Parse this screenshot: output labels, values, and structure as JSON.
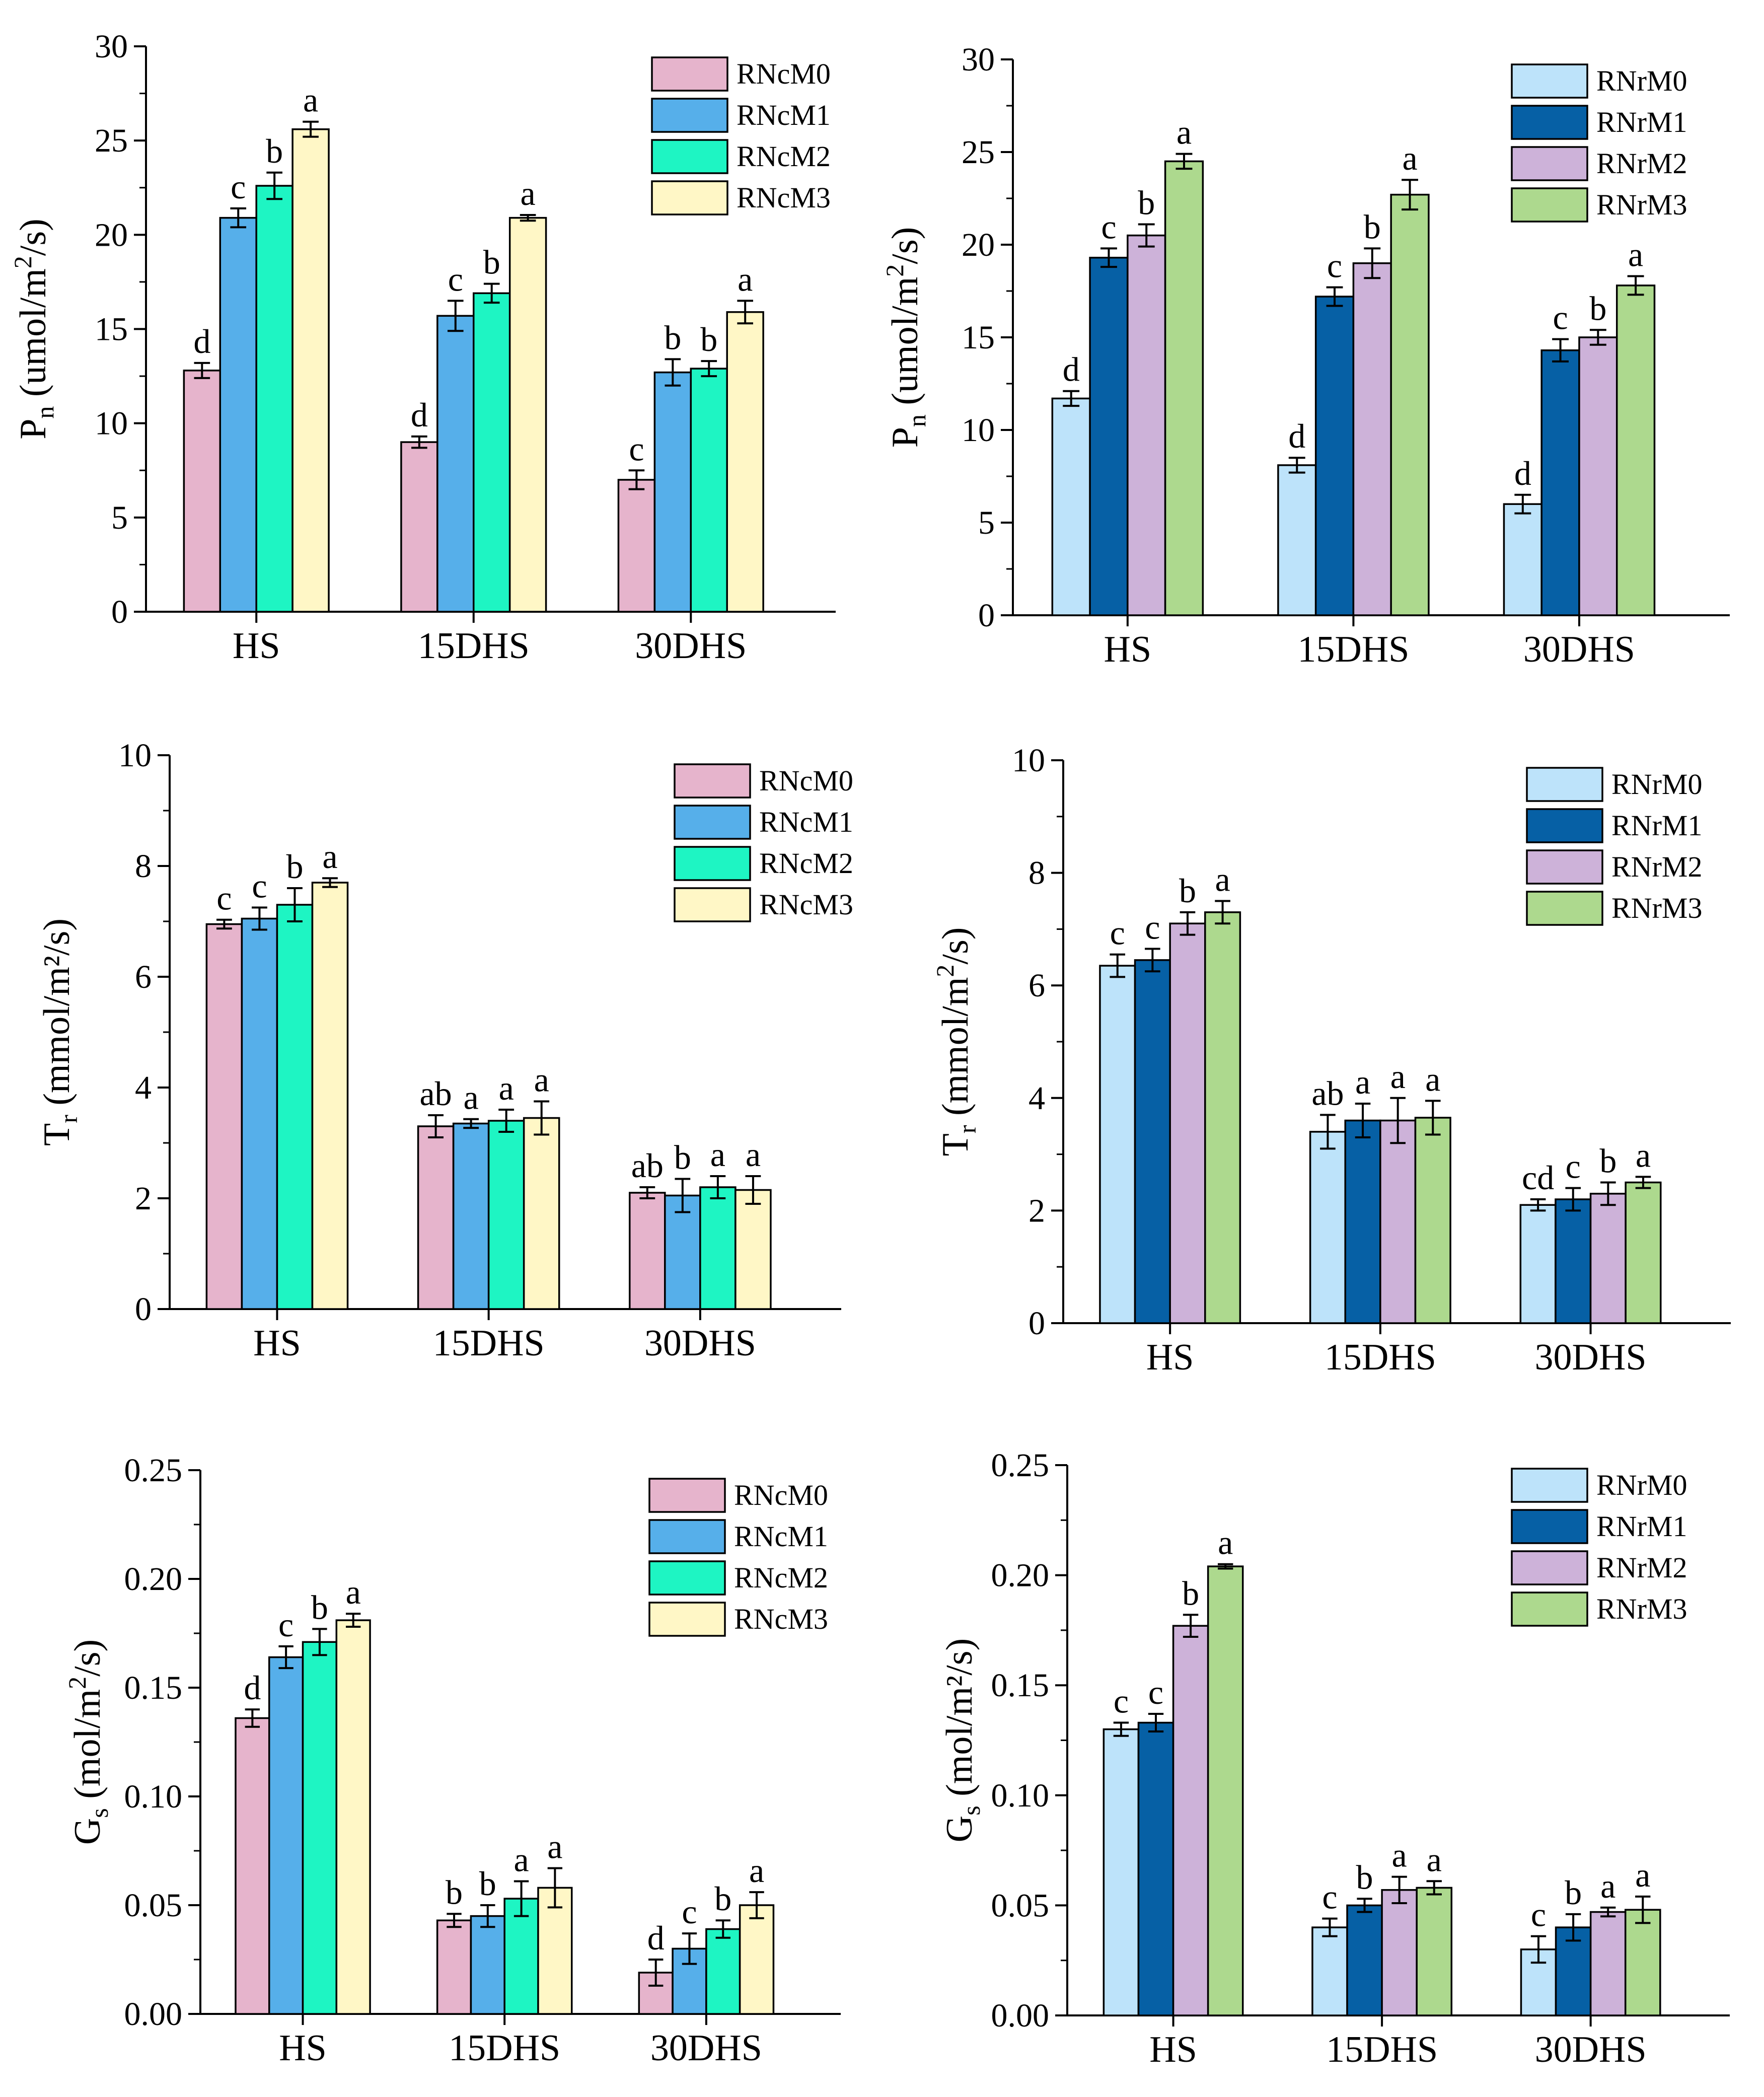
{
  "figure": {
    "title": ""
  },
  "chart_data": [
    {
      "id": "pn-rnc",
      "type": "bar",
      "title": "",
      "ylabel": {
        "main": "P",
        "sub": "n",
        "units": " (umol/m",
        "sup": "2",
        "tail": "/s)"
      },
      "ylim": [
        0,
        30
      ],
      "yticks": [
        "0",
        "5",
        "10",
        "15",
        "20",
        "25",
        "30"
      ],
      "categories": [
        "HS",
        "15DHS",
        "30DHS"
      ],
      "series": [
        {
          "name": "RNcM0",
          "color": "#E6B4CC",
          "values": [
            12.8,
            9.0,
            7.0
          ],
          "errors": [
            0.4,
            0.3,
            0.5
          ],
          "letters": [
            "d",
            "d",
            "c"
          ]
        },
        {
          "name": "RNcM1",
          "color": "#56AFEA",
          "values": [
            20.9,
            15.7,
            12.7
          ],
          "errors": [
            0.5,
            0.8,
            0.7
          ],
          "letters": [
            "c",
            "c",
            "b"
          ]
        },
        {
          "name": "RNcM2",
          "color": "#1EF5C3",
          "values": [
            22.6,
            16.9,
            12.9
          ],
          "errors": [
            0.7,
            0.5,
            0.4
          ],
          "letters": [
            "b",
            "b",
            "b"
          ]
        },
        {
          "name": "RNcM3",
          "color": "#FFF7C6",
          "values": [
            25.6,
            20.9,
            15.9
          ],
          "errors": [
            0.4,
            0.15,
            0.6
          ],
          "letters": [
            "a",
            "a",
            "a"
          ]
        }
      ],
      "legend_position": "top-right"
    },
    {
      "id": "pn-rnr",
      "type": "bar",
      "title": "",
      "ylabel": {
        "main": "P",
        "sub": "n",
        "units": " (umol/m",
        "sup": "2",
        "tail": "/s)"
      },
      "ylim": [
        0,
        30
      ],
      "yticks": [
        "0",
        "5",
        "10",
        "15",
        "20",
        "25",
        "30"
      ],
      "categories": [
        "HS",
        "15DHS",
        "30DHS"
      ],
      "series": [
        {
          "name": "RNrM0",
          "color": "#BDE3FA",
          "values": [
            11.7,
            8.1,
            6.0
          ],
          "errors": [
            0.4,
            0.4,
            0.5
          ],
          "letters": [
            "d",
            "d",
            "d"
          ]
        },
        {
          "name": "RNrM1",
          "color": "#0660A5",
          "values": [
            19.3,
            17.2,
            14.3
          ],
          "errors": [
            0.5,
            0.5,
            0.6
          ],
          "letters": [
            "c",
            "c",
            "c"
          ]
        },
        {
          "name": "RNrM2",
          "color": "#CDB2D9",
          "values": [
            20.5,
            19.0,
            15.0
          ],
          "errors": [
            0.6,
            0.8,
            0.4
          ],
          "letters": [
            "b",
            "b",
            "b"
          ]
        },
        {
          "name": "RNrM3",
          "color": "#ADD98E",
          "values": [
            24.5,
            22.7,
            17.8
          ],
          "errors": [
            0.4,
            0.8,
            0.5
          ],
          "letters": [
            "a",
            "a",
            "a"
          ]
        }
      ],
      "legend_position": "top-right"
    },
    {
      "id": "tr-rnc",
      "type": "bar",
      "title": "",
      "ylabel": {
        "main": "T",
        "sub": "r",
        "units": " (mmol/m²/s)",
        "sup": "",
        "tail": ""
      },
      "ylim": [
        0,
        10
      ],
      "yticks": [
        "0",
        "2",
        "4",
        "6",
        "8",
        "10"
      ],
      "categories": [
        "HS",
        "15DHS",
        "30DHS"
      ],
      "series": [
        {
          "name": "RNcM0",
          "color": "#E6B4CC",
          "values": [
            6.95,
            3.3,
            2.1
          ],
          "errors": [
            0.08,
            0.2,
            0.1
          ],
          "letters": [
            "c",
            "ab",
            "ab"
          ]
        },
        {
          "name": "RNcM1",
          "color": "#56AFEA",
          "values": [
            7.05,
            3.35,
            2.05
          ],
          "errors": [
            0.2,
            0.08,
            0.3
          ],
          "letters": [
            "c",
            "a",
            "b"
          ]
        },
        {
          "name": "RNcM2",
          "color": "#1EF5C3",
          "values": [
            7.3,
            3.4,
            2.2
          ],
          "errors": [
            0.3,
            0.2,
            0.2
          ],
          "letters": [
            "b",
            "a",
            "a"
          ]
        },
        {
          "name": "RNcM3",
          "color": "#FFF7C6",
          "values": [
            7.7,
            3.45,
            2.15
          ],
          "errors": [
            0.08,
            0.3,
            0.25
          ],
          "letters": [
            "a",
            "a",
            "a"
          ]
        }
      ],
      "legend_position": "top-right"
    },
    {
      "id": "tr-rnr",
      "type": "bar",
      "title": "",
      "ylabel": {
        "main": "T",
        "sub": "r",
        "units": " (mmol/m",
        "sup": "2",
        "tail": "/s)"
      },
      "ylim": [
        0,
        10
      ],
      "yticks": [
        "0",
        "2",
        "4",
        "6",
        "8",
        "10"
      ],
      "categories": [
        "HS",
        "15DHS",
        "30DHS"
      ],
      "series": [
        {
          "name": "RNrM0",
          "color": "#BDE3FA",
          "values": [
            6.35,
            3.4,
            2.1
          ],
          "errors": [
            0.2,
            0.3,
            0.1
          ],
          "letters": [
            "c",
            "ab",
            "cd"
          ]
        },
        {
          "name": "RNrM1",
          "color": "#0660A5",
          "values": [
            6.45,
            3.6,
            2.2
          ],
          "errors": [
            0.2,
            0.3,
            0.2
          ],
          "letters": [
            "c",
            "a",
            "c"
          ]
        },
        {
          "name": "RNrM2",
          "color": "#CDB2D9",
          "values": [
            7.1,
            3.6,
            2.3
          ],
          "errors": [
            0.2,
            0.4,
            0.2
          ],
          "letters": [
            "b",
            "a",
            "b"
          ]
        },
        {
          "name": "RNrM3",
          "color": "#ADD98E",
          "values": [
            7.3,
            3.65,
            2.5
          ],
          "errors": [
            0.2,
            0.3,
            0.1
          ],
          "letters": [
            "a",
            "a",
            "a"
          ]
        }
      ],
      "legend_position": "top-right"
    },
    {
      "id": "gs-rnc",
      "type": "bar",
      "title": "",
      "ylabel": {
        "main": "G",
        "sub": "s",
        "units": " (mol/m",
        "sup": "2",
        "tail": "/s)"
      },
      "ylim": [
        0,
        0.25
      ],
      "yticks": [
        "0.00",
        "0.05",
        "0.10",
        "0.15",
        "0.20",
        "0.25"
      ],
      "categories": [
        "HS",
        "15DHS",
        "30DHS"
      ],
      "series": [
        {
          "name": "RNcM0",
          "color": "#E6B4CC",
          "values": [
            0.136,
            0.043,
            0.019
          ],
          "errors": [
            0.004,
            0.003,
            0.006
          ],
          "letters": [
            "d",
            "b",
            "d"
          ]
        },
        {
          "name": "RNcM1",
          "color": "#56AFEA",
          "values": [
            0.164,
            0.045,
            0.03
          ],
          "errors": [
            0.005,
            0.005,
            0.007
          ],
          "letters": [
            "c",
            "b",
            "c"
          ]
        },
        {
          "name": "RNcM2",
          "color": "#1EF5C3",
          "values": [
            0.171,
            0.053,
            0.039
          ],
          "errors": [
            0.006,
            0.008,
            0.004
          ],
          "letters": [
            "b",
            "a",
            "b"
          ]
        },
        {
          "name": "RNcM3",
          "color": "#FFF7C6",
          "values": [
            0.181,
            0.058,
            0.05
          ],
          "errors": [
            0.003,
            0.009,
            0.006
          ],
          "letters": [
            "a",
            "a",
            "a"
          ]
        }
      ],
      "legend_position": "top-right"
    },
    {
      "id": "gs-rnr",
      "type": "bar",
      "title": "",
      "ylabel": {
        "main": "G",
        "sub": "s",
        "units": " (mol/m²/s)",
        "sup": "",
        "tail": ""
      },
      "ylim": [
        0,
        0.25
      ],
      "yticks": [
        "0.00",
        "0.05",
        "0.10",
        "0.15",
        "0.20",
        "0.25"
      ],
      "categories": [
        "HS",
        "15DHS",
        "30DHS"
      ],
      "series": [
        {
          "name": "RNrM0",
          "color": "#BDE3FA",
          "values": [
            0.13,
            0.04,
            0.03
          ],
          "errors": [
            0.003,
            0.004,
            0.006
          ],
          "letters": [
            "c",
            "c",
            "c"
          ]
        },
        {
          "name": "RNrM1",
          "color": "#0660A5",
          "values": [
            0.133,
            0.05,
            0.04
          ],
          "errors": [
            0.004,
            0.003,
            0.006
          ],
          "letters": [
            "c",
            "b",
            "b"
          ]
        },
        {
          "name": "RNrM2",
          "color": "#CDB2D9",
          "values": [
            0.177,
            0.057,
            0.047
          ],
          "errors": [
            0.005,
            0.006,
            0.002
          ],
          "letters": [
            "b",
            "a",
            "a"
          ]
        },
        {
          "name": "RNrM3",
          "color": "#ADD98E",
          "values": [
            0.204,
            0.058,
            0.048
          ],
          "errors": [
            0.001,
            0.003,
            0.006
          ],
          "letters": [
            "a",
            "a",
            "a"
          ]
        }
      ],
      "legend_position": "top-right"
    }
  ]
}
